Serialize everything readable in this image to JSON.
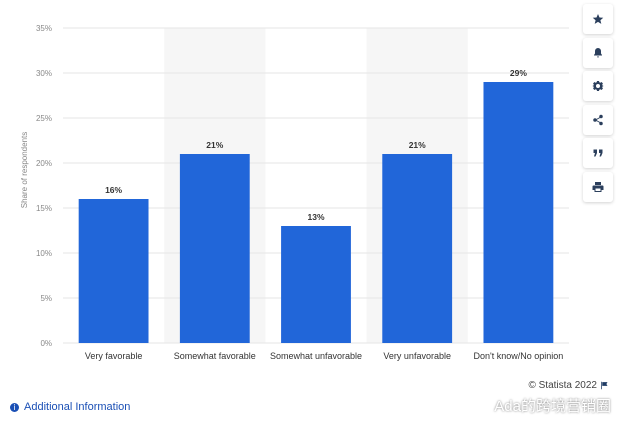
{
  "chart_data": {
    "type": "bar",
    "categories": [
      "Very favorable",
      "Somewhat favorable",
      "Somewhat unfavorable",
      "Very unfavorable",
      "Don't know/No opinion"
    ],
    "values": [
      16,
      21,
      13,
      21,
      29
    ],
    "data_labels": [
      "16%",
      "21%",
      "13%",
      "21%",
      "29%"
    ],
    "ylabel": "Share of respondents",
    "ylim": [
      0,
      35
    ],
    "yticks": [
      0,
      5,
      10,
      15,
      20,
      25,
      30,
      35
    ],
    "ytick_labels": [
      "0%",
      "5%",
      "10%",
      "15%",
      "20%",
      "25%",
      "30%",
      "35%"
    ],
    "bar_color": "#2166d9",
    "band_color": "#f6f6f6",
    "grid": true
  },
  "toolbar": {
    "icons": [
      "star-icon",
      "bell-icon",
      "gear-icon",
      "share-icon",
      "quote-icon",
      "print-icon"
    ]
  },
  "footer": {
    "copyright": "© Statista 2022",
    "info_link": "Additional Information",
    "info_icon": "i"
  },
  "watermark": {
    "text": "Ada的跨境营销圈"
  }
}
